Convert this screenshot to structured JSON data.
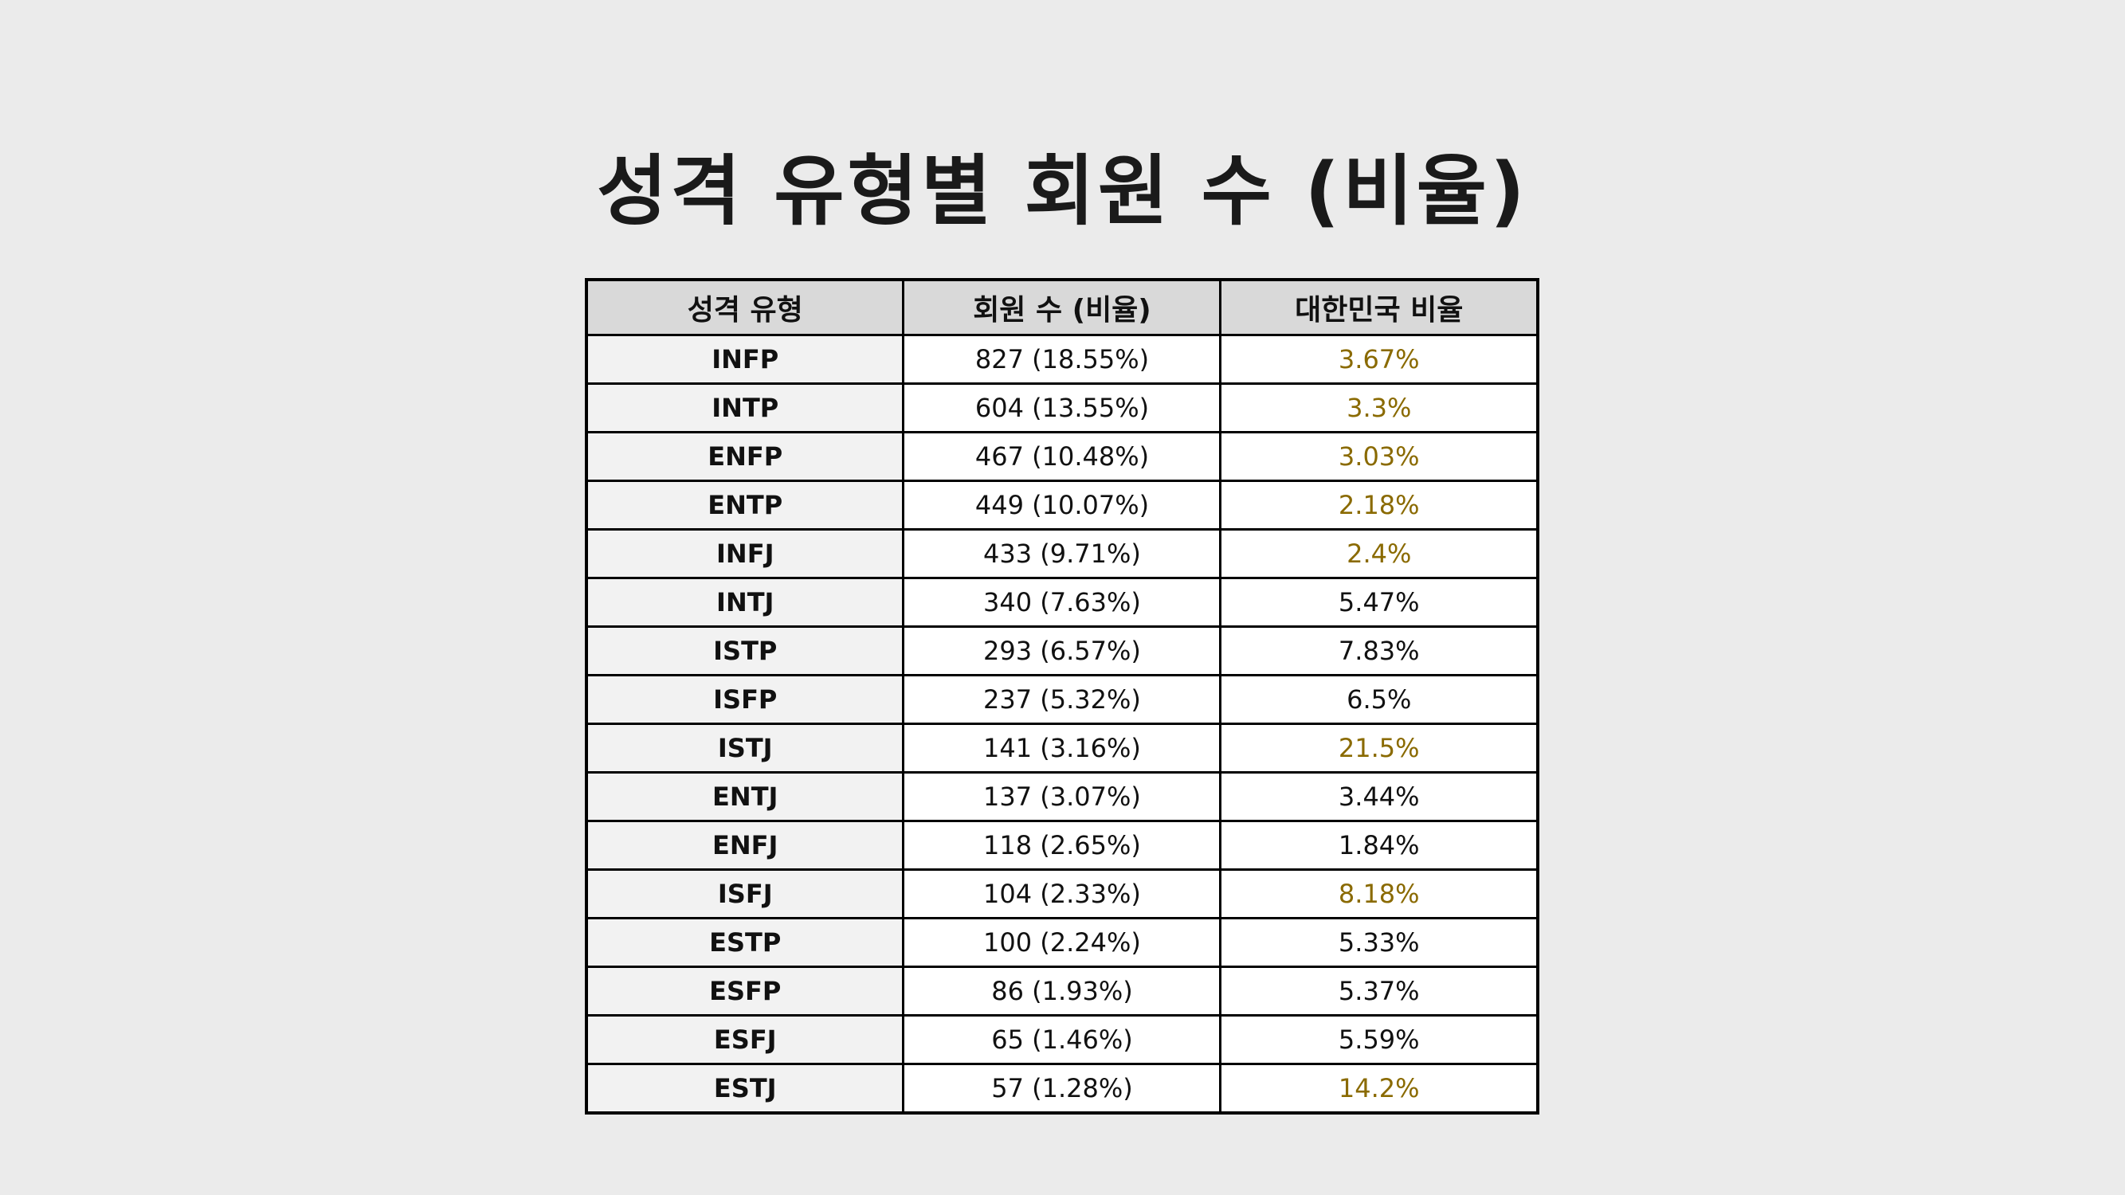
{
  "title": "성격 유형별 회원 수 (비율)",
  "highlight_color": "#8a6a00",
  "table": {
    "headers": [
      "성격 유형",
      "회원 수 (비율)",
      "대한민국 비율"
    ],
    "rows": [
      {
        "type": "INFP",
        "count": "827 (18.55%)",
        "korea": "3.67%",
        "highlight": true
      },
      {
        "type": "INTP",
        "count": "604 (13.55%)",
        "korea": "3.3%",
        "highlight": true
      },
      {
        "type": "ENFP",
        "count": "467 (10.48%)",
        "korea": "3.03%",
        "highlight": true
      },
      {
        "type": "ENTP",
        "count": "449 (10.07%)",
        "korea": "2.18%",
        "highlight": true
      },
      {
        "type": "INFJ",
        "count": "433 (9.71%)",
        "korea": "2.4%",
        "highlight": true
      },
      {
        "type": "INTJ",
        "count": "340 (7.63%)",
        "korea": "5.47%",
        "highlight": false
      },
      {
        "type": "ISTP",
        "count": "293 (6.57%)",
        "korea": "7.83%",
        "highlight": false
      },
      {
        "type": "ISFP",
        "count": "237 (5.32%)",
        "korea": "6.5%",
        "highlight": false
      },
      {
        "type": "ISTJ",
        "count": "141 (3.16%)",
        "korea": "21.5%",
        "highlight": true
      },
      {
        "type": "ENTJ",
        "count": "137 (3.07%)",
        "korea": "3.44%",
        "highlight": false
      },
      {
        "type": "ENFJ",
        "count": "118 (2.65%)",
        "korea": "1.84%",
        "highlight": false
      },
      {
        "type": "ISFJ",
        "count": "104 (2.33%)",
        "korea": "8.18%",
        "highlight": true
      },
      {
        "type": "ESTP",
        "count": "100 (2.24%)",
        "korea": "5.33%",
        "highlight": false
      },
      {
        "type": "ESFP",
        "count": "86 (1.93%)",
        "korea": "5.37%",
        "highlight": false
      },
      {
        "type": "ESFJ",
        "count": "65 (1.46%)",
        "korea": "5.59%",
        "highlight": false
      },
      {
        "type": "ESTJ",
        "count": "57 (1.28%)",
        "korea": "14.2%",
        "highlight": true
      }
    ]
  }
}
